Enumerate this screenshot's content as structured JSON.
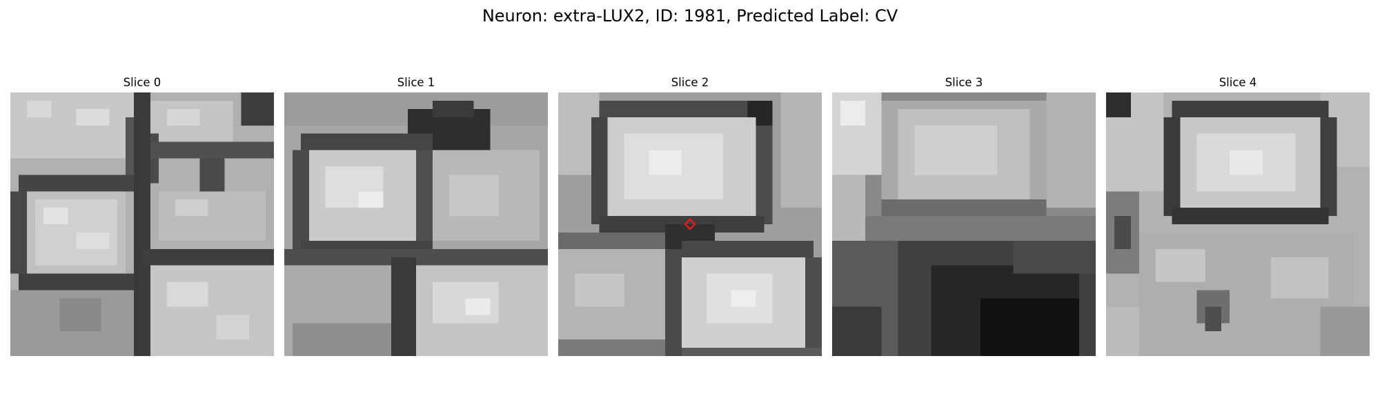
{
  "figure": {
    "title": "Neuron: extra-LUX2, ID: 1981, Predicted Label: CV"
  },
  "panels": [
    {
      "title": "Slice 0"
    },
    {
      "title": "Slice 1"
    },
    {
      "title": "Slice 2"
    },
    {
      "title": "Slice 3"
    },
    {
      "title": "Slice 4"
    }
  ],
  "marker": {
    "panel": 2,
    "shape": "diamond",
    "color": "#e11d1d"
  }
}
